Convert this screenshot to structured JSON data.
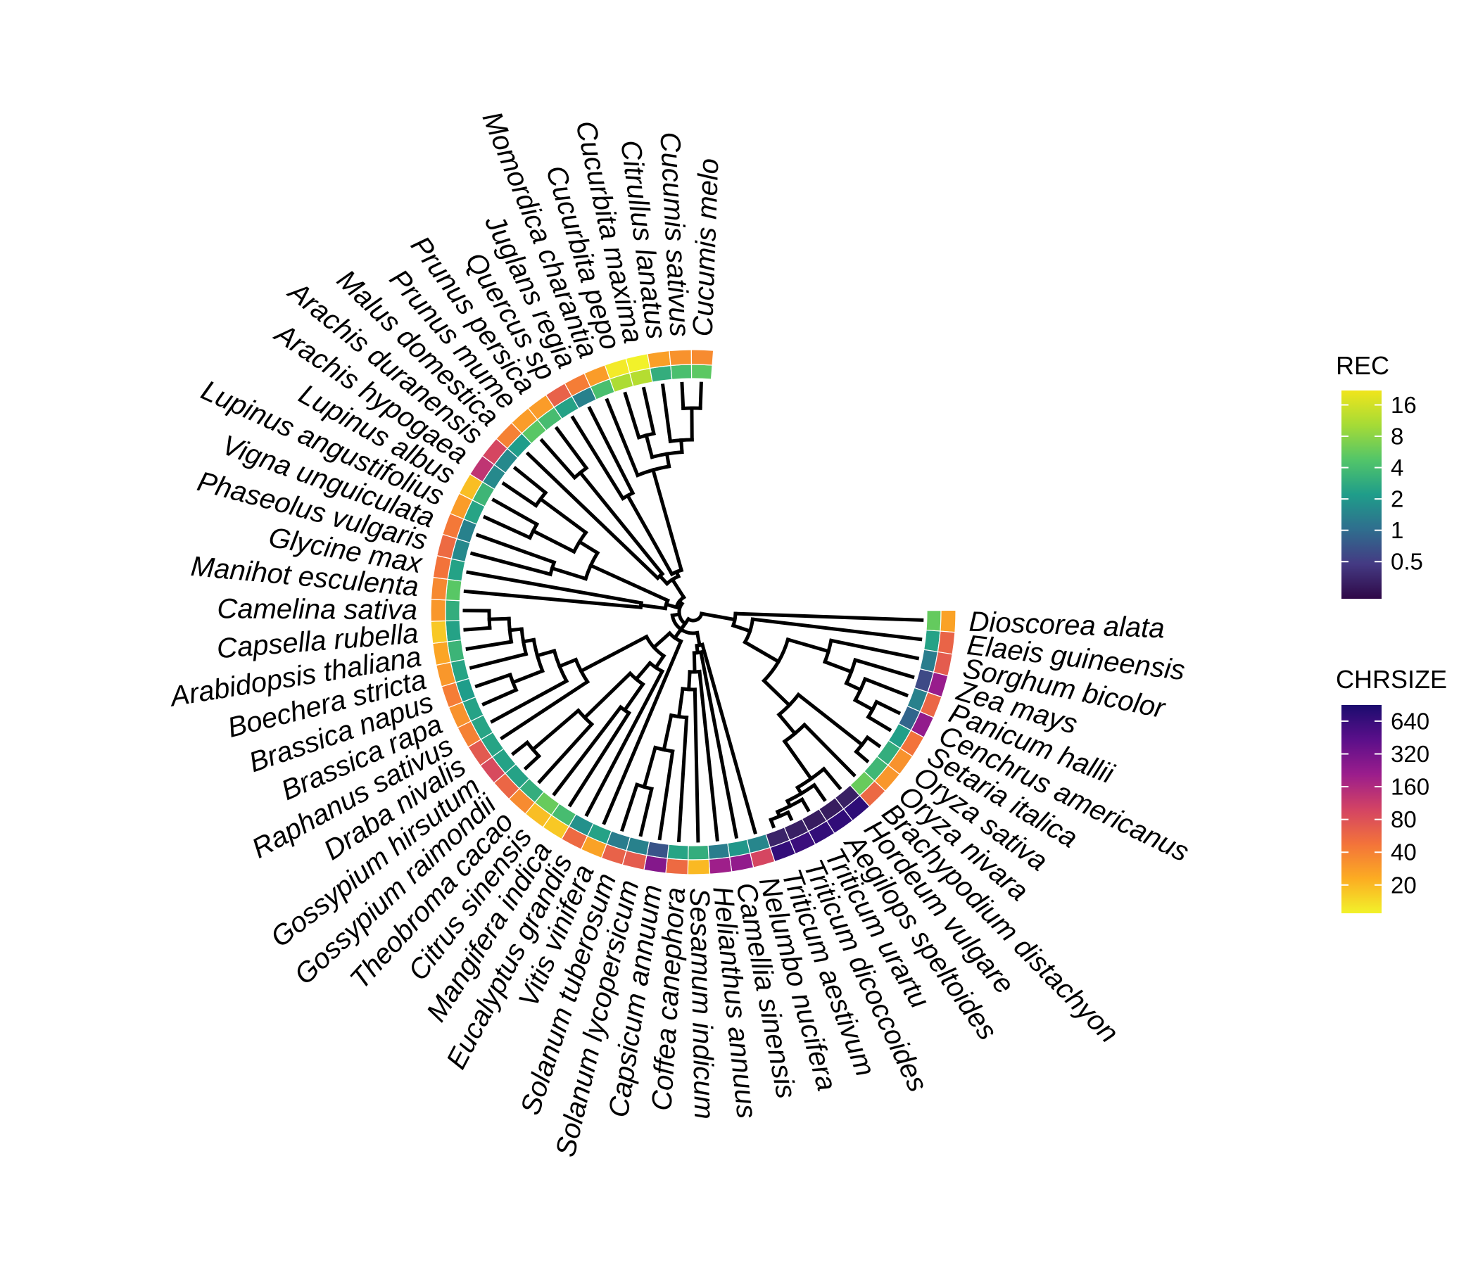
{
  "tree": {
    "tips": [
      {
        "name": "Dioscorea alata",
        "rec": 5.6,
        "chrsize": 26
      },
      {
        "name": "Elaeis guineensis",
        "rec": 2.4,
        "chrsize": 60
      },
      {
        "name": "Sorghum bicolor",
        "rec": 1.3,
        "chrsize": 68
      },
      {
        "name": "Zea mays",
        "rec": 0.6,
        "chrsize": 215
      },
      {
        "name": "Panicum hallii",
        "rec": 1.4,
        "chrsize": 58
      },
      {
        "name": "Cenchrus americanus",
        "rec": 0.9,
        "chrsize": 230
      },
      {
        "name": "Setaria italica",
        "rec": 2.3,
        "chrsize": 48
      },
      {
        "name": "Oryza sativa",
        "rec": 3.0,
        "chrsize": 32
      },
      {
        "name": "Oryza nivara",
        "rec": 3.6,
        "chrsize": 30
      },
      {
        "name": "Brachypodium distachyon",
        "rec": 5.8,
        "chrsize": 56
      },
      {
        "name": "Hordeum vulgare",
        "rec": 0.32,
        "chrsize": 720
      },
      {
        "name": "Aegilops speltoides",
        "rec": 0.3,
        "chrsize": 700
      },
      {
        "name": "Triticum urartu",
        "rec": 0.3,
        "chrsize": 690
      },
      {
        "name": "Triticum dicoccoides",
        "rec": 0.32,
        "chrsize": 620
      },
      {
        "name": "Triticum aestivum",
        "rec": 0.34,
        "chrsize": 680
      },
      {
        "name": "Nelumbo nucifera",
        "rec": 1.5,
        "chrsize": 95
      },
      {
        "name": "Camellia sinensis",
        "rec": 2.0,
        "chrsize": 230
      },
      {
        "name": "Helianthus annuus",
        "rec": 1.3,
        "chrsize": 200
      },
      {
        "name": "Sesamum indicum",
        "rec": 3.0,
        "chrsize": 20
      },
      {
        "name": "Coffea canephora",
        "rec": 2.5,
        "chrsize": 55
      },
      {
        "name": "Capsicum annuum",
        "rec": 0.7,
        "chrsize": 270
      },
      {
        "name": "Solanum lycopersicum",
        "rec": 1.4,
        "chrsize": 68
      },
      {
        "name": "Solanum tuberosum",
        "rec": 1.3,
        "chrsize": 62
      },
      {
        "name": "Vitis vinifera",
        "rec": 2.4,
        "chrsize": 26
      },
      {
        "name": "Eucalyptus grandis",
        "rec": 1.8,
        "chrsize": 55
      },
      {
        "name": "Mangifera indica",
        "rec": 4.0,
        "chrsize": 17
      },
      {
        "name": "Citrus sinensis",
        "rec": 5.8,
        "chrsize": 19
      },
      {
        "name": "Theobroma cacao",
        "rec": 3.0,
        "chrsize": 35
      },
      {
        "name": "Gossypium raimondii",
        "rec": 2.4,
        "chrsize": 58
      },
      {
        "name": "Gossypium hirsutum",
        "rec": 2.4,
        "chrsize": 90
      },
      {
        "name": "Draba nivalis",
        "rec": 2.5,
        "chrsize": 70
      },
      {
        "name": "Raphanus sativus",
        "rec": 2.5,
        "chrsize": 40
      },
      {
        "name": "Brassica rapa",
        "rec": 2.4,
        "chrsize": 32
      },
      {
        "name": "Brassica napus",
        "rec": 2.2,
        "chrsize": 42
      },
      {
        "name": "Boechera stricta",
        "rec": 2.5,
        "chrsize": 30
      },
      {
        "name": "Arabidopsis thaliana",
        "rec": 3.4,
        "chrsize": 25
      },
      {
        "name": "Capsella rubella",
        "rec": 2.4,
        "chrsize": 17
      },
      {
        "name": "Camelina sativa",
        "rec": 3.0,
        "chrsize": 30
      },
      {
        "name": "Manihot esculenta",
        "rec": 5.0,
        "chrsize": 36
      },
      {
        "name": "Glycine max",
        "rec": 2.4,
        "chrsize": 48
      },
      {
        "name": "Phaseolus vulgaris",
        "rec": 1.6,
        "chrsize": 55
      },
      {
        "name": "Vigna unguiculata",
        "rec": 1.4,
        "chrsize": 45
      },
      {
        "name": "Lupinus angustifolius",
        "rec": 2.5,
        "chrsize": 28
      },
      {
        "name": "Lupinus albus",
        "rec": 3.5,
        "chrsize": 19
      },
      {
        "name": "Arachis hypogaea",
        "rec": 1.6,
        "chrsize": 130
      },
      {
        "name": "Arachis duranensis",
        "rec": 1.6,
        "chrsize": 95
      },
      {
        "name": "Malus domestica",
        "rec": 2.2,
        "chrsize": 40
      },
      {
        "name": "Prunus mume",
        "rec": 5.0,
        "chrsize": 28
      },
      {
        "name": "Prunus persica",
        "rec": 4.0,
        "chrsize": 28
      },
      {
        "name": "Quercus sp",
        "rec": 2.4,
        "chrsize": 62
      },
      {
        "name": "Juglans regia",
        "rec": 1.4,
        "chrsize": 42
      },
      {
        "name": "Momordica charantia",
        "rec": 4.2,
        "chrsize": 28
      },
      {
        "name": "Cucurbita pepo",
        "rec": 11.0,
        "chrsize": 12
      },
      {
        "name": "Cucurbita maxima",
        "rec": 12.0,
        "chrsize": 11
      },
      {
        "name": "Citrullus lanatus",
        "rec": 3.0,
        "chrsize": 27
      },
      {
        "name": "Cucumis sativus",
        "rec": 4.2,
        "chrsize": 32
      },
      {
        "name": "Cucumis melo",
        "rec": 5.2,
        "chrsize": 35
      }
    ],
    "legend": {
      "rec": {
        "title": "REC",
        "ticks": [
          {
            "label": "16",
            "value": 16
          },
          {
            "label": "8",
            "value": 8
          },
          {
            "label": "4",
            "value": 4
          },
          {
            "label": "2",
            "value": 2
          },
          {
            "label": "1",
            "value": 1
          },
          {
            "label": "0.5",
            "value": 0.5
          }
        ]
      },
      "chrsize": {
        "title": "CHRSIZE",
        "ticks": [
          {
            "label": "640",
            "value": 640
          },
          {
            "label": "320",
            "value": 320
          },
          {
            "label": "160",
            "value": 160
          },
          {
            "label": "80",
            "value": 80
          },
          {
            "label": "40",
            "value": 40
          },
          {
            "label": "20",
            "value": 20
          }
        ]
      }
    },
    "colors": {
      "rec_scale": [
        "#2f0847",
        "#443a83",
        "#2f6e8e",
        "#1f9d8a",
        "#52c569",
        "#a5db36",
        "#f0e51c"
      ],
      "chrsize_scale": [
        "#1b0c6e",
        "#5b0f8a",
        "#9b1d8c",
        "#d34364",
        "#f3733a",
        "#fcac22",
        "#f2f22a"
      ],
      "branch": "#000000"
    }
  }
}
